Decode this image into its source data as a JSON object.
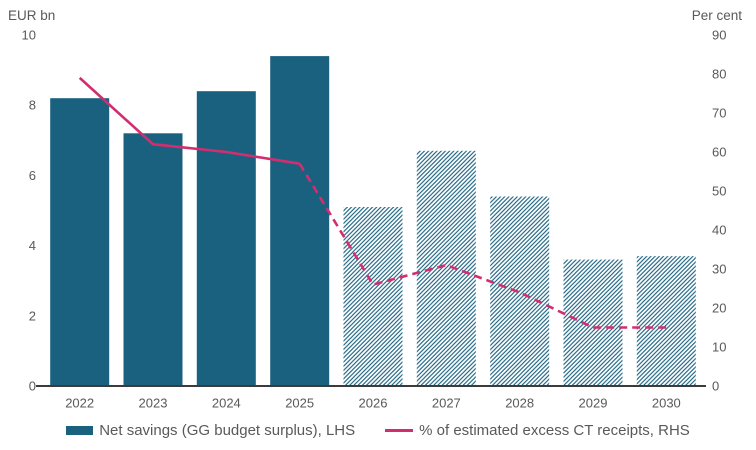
{
  "colors": {
    "bar": "#1A617F",
    "line": "#D22E6F",
    "text": "#595959",
    "axis_line": "#3B3B3B",
    "background": "#FFFFFF"
  },
  "chart_data": {
    "type": "bar+line",
    "categories": [
      "2022",
      "2023",
      "2024",
      "2025",
      "2026",
      "2027",
      "2028",
      "2029",
      "2030"
    ],
    "series": [
      {
        "name": "Net savings (GG budget surplus), LHS",
        "type": "bar",
        "axis": "left",
        "values": [
          8.2,
          7.2,
          8.4,
          9.4,
          5.1,
          6.7,
          5.4,
          3.6,
          3.7
        ],
        "fill_style": [
          "solid",
          "solid",
          "solid",
          "solid",
          "hatched",
          "hatched",
          "hatched",
          "hatched",
          "hatched"
        ]
      },
      {
        "name": "% of estimated excess CT receipts, RHS",
        "type": "line",
        "axis": "right",
        "values": [
          79,
          62,
          60,
          57,
          26,
          31,
          24,
          15,
          15
        ],
        "line_style": [
          "solid",
          "solid",
          "solid",
          "solid",
          "dashed",
          "dashed",
          "dashed",
          "dashed",
          "dashed"
        ]
      }
    ],
    "left_axis": {
      "title": "EUR bn",
      "range": [
        0,
        10
      ],
      "ticks": [
        0,
        2,
        4,
        6,
        8,
        10
      ]
    },
    "right_axis": {
      "title": "Per cent",
      "range": [
        0,
        90
      ],
      "ticks": [
        0,
        10,
        20,
        30,
        40,
        50,
        60,
        70,
        80,
        90
      ]
    },
    "grid": false,
    "legend_position": "bottom"
  }
}
